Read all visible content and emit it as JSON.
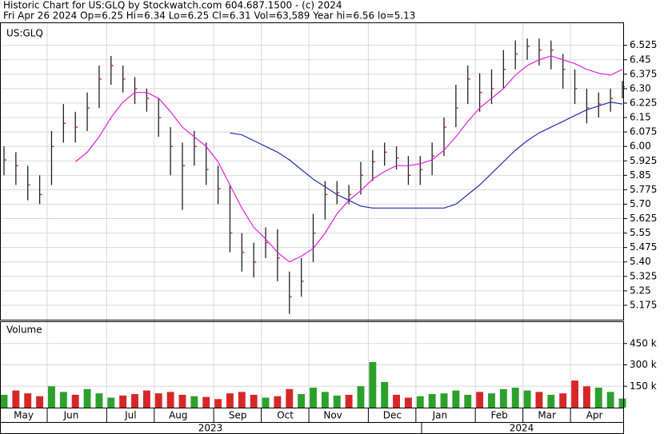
{
  "chart_data": [
    {
      "type": "hlc",
      "title": "Historic Chart for US:GLQ by Stockwatch.com 604.687.1500 - (c) 2024",
      "subtitle": "Fri Apr 26 2024  Op=6.25  Hi=6.34  Lo=6.25  Cl=6.31  Vol=63,589  Year hi=6.56  lo=5.13",
      "label": "US:GLQ",
      "color": "#202020",
      "high": [
        6.0,
        5.97,
        5.9,
        5.85,
        6.08,
        6.22,
        6.18,
        6.28,
        6.42,
        6.47,
        6.42,
        6.36,
        6.3,
        6.25,
        6.1,
        6.02,
        6.08,
        6.02,
        5.9,
        5.8,
        5.55,
        5.5,
        5.58,
        5.57,
        5.35,
        5.42,
        5.65,
        5.82,
        5.82,
        5.8,
        5.92,
        5.98,
        6.02,
        6.0,
        5.95,
        5.95,
        6.02,
        6.15,
        6.32,
        6.42,
        6.38,
        6.4,
        6.5,
        6.55,
        6.56,
        6.56,
        6.55,
        6.48,
        6.4,
        6.3,
        6.28,
        6.3,
        6.34
      ],
      "low": [
        5.85,
        5.8,
        5.72,
        5.7,
        5.8,
        6.02,
        6.02,
        6.08,
        6.2,
        6.32,
        6.28,
        6.22,
        6.18,
        6.05,
        5.85,
        5.67,
        5.9,
        5.8,
        5.7,
        5.45,
        5.35,
        5.32,
        5.42,
        5.3,
        5.13,
        5.22,
        5.4,
        5.62,
        5.7,
        5.7,
        5.75,
        5.82,
        5.9,
        5.88,
        5.8,
        5.8,
        5.85,
        5.95,
        6.1,
        6.22,
        6.18,
        6.22,
        6.3,
        6.4,
        6.45,
        6.42,
        6.4,
        6.3,
        6.22,
        6.12,
        6.15,
        6.18,
        6.25
      ],
      "close": [
        5.93,
        5.9,
        5.8,
        5.75,
        6.0,
        6.12,
        6.1,
        6.2,
        6.35,
        6.42,
        6.35,
        6.3,
        6.25,
        6.15,
        6.0,
        5.9,
        6.0,
        5.88,
        5.78,
        5.55,
        5.45,
        5.4,
        5.5,
        5.42,
        5.22,
        5.3,
        5.55,
        5.75,
        5.76,
        5.75,
        5.85,
        5.92,
        5.97,
        5.94,
        5.85,
        5.88,
        5.95,
        6.1,
        6.2,
        6.35,
        6.28,
        6.3,
        6.4,
        6.48,
        6.52,
        6.5,
        6.5,
        6.4,
        6.3,
        6.2,
        6.22,
        6.25,
        6.31
      ],
      "lines": [
        {
          "color": "#e020e0",
          "values": [
            null,
            null,
            null,
            null,
            null,
            null,
            5.92,
            5.97,
            6.05,
            6.15,
            6.23,
            6.28,
            6.28,
            6.25,
            6.18,
            6.1,
            6.05,
            6.0,
            5.92,
            5.8,
            5.68,
            5.58,
            5.52,
            5.45,
            5.4,
            5.43,
            5.47,
            5.55,
            5.65,
            5.72,
            5.77,
            5.83,
            5.87,
            5.9,
            5.9,
            5.91,
            5.93,
            5.98,
            6.05,
            6.13,
            6.2,
            6.25,
            6.3,
            6.37,
            6.42,
            6.45,
            6.47,
            6.45,
            6.43,
            6.4,
            6.38,
            6.37,
            6.4
          ]
        },
        {
          "color": "#2030b0",
          "values": [
            null,
            null,
            null,
            null,
            null,
            null,
            null,
            null,
            null,
            null,
            null,
            null,
            null,
            null,
            null,
            null,
            null,
            null,
            null,
            6.07,
            6.06,
            6.03,
            6.0,
            5.97,
            5.93,
            5.88,
            5.83,
            5.79,
            5.75,
            5.72,
            5.69,
            5.68,
            5.68,
            5.68,
            5.68,
            5.68,
            5.68,
            5.68,
            5.7,
            5.75,
            5.8,
            5.86,
            5.92,
            5.98,
            6.03,
            6.07,
            6.1,
            6.13,
            6.16,
            6.19,
            6.21,
            6.23,
            6.22
          ]
        }
      ],
      "ylim": [
        5.1,
        6.64
      ],
      "yticks": [
        5.175,
        5.25,
        5.325,
        {
          "value": 5.4,
          "label": "5.40"
        },
        5.475,
        5.55,
        5.625,
        {
          "value": 5.7,
          "label": "5.70"
        },
        5.775,
        5.85,
        5.925,
        {
          "value": 6.0,
          "label": "6.00"
        },
        6.075,
        6.15,
        6.225,
        {
          "value": 6.3,
          "label": "6.30"
        },
        6.375,
        6.45,
        6.525
      ],
      "grid": true
    },
    {
      "type": "bar",
      "title": "Volume",
      "values": [
        90000,
        120000,
        100000,
        80000,
        150000,
        110000,
        90000,
        130000,
        100000,
        70000,
        85000,
        95000,
        120000,
        100000,
        110000,
        90000,
        80000,
        75000,
        60000,
        100000,
        110000,
        90000,
        70000,
        80000,
        130000,
        95000,
        140000,
        110000,
        85000,
        90000,
        150000,
        320000,
        180000,
        90000,
        70000,
        80000,
        95000,
        100000,
        120000,
        90000,
        110000,
        100000,
        130000,
        140000,
        120000,
        110000,
        90000,
        100000,
        190000,
        150000,
        140000,
        110000,
        63589
      ],
      "up_color": "#2ca02c",
      "down_color": "#d62728",
      "categories": [
        "May",
        null,
        null,
        null,
        "Jun",
        null,
        null,
        null,
        null,
        "Jul",
        null,
        null,
        null,
        "Aug",
        null,
        null,
        null,
        null,
        "Sep",
        null,
        null,
        null,
        "Oct",
        null,
        null,
        null,
        "Nov",
        null,
        null,
        null,
        null,
        "Dec",
        null,
        null,
        null,
        "Jan",
        null,
        null,
        null,
        null,
        "Feb",
        null,
        null,
        null,
        "Mar",
        null,
        null,
        null,
        "Apr",
        null,
        null,
        null,
        null
      ],
      "years": [
        "2023",
        "2024"
      ],
      "ylim": [
        0,
        600000
      ],
      "yticks": [
        {
          "value": 150000,
          "label": "150 k"
        },
        {
          "value": 300000,
          "label": "300 k"
        },
        {
          "value": 450000,
          "label": "450 k"
        }
      ],
      "grid": true
    }
  ]
}
